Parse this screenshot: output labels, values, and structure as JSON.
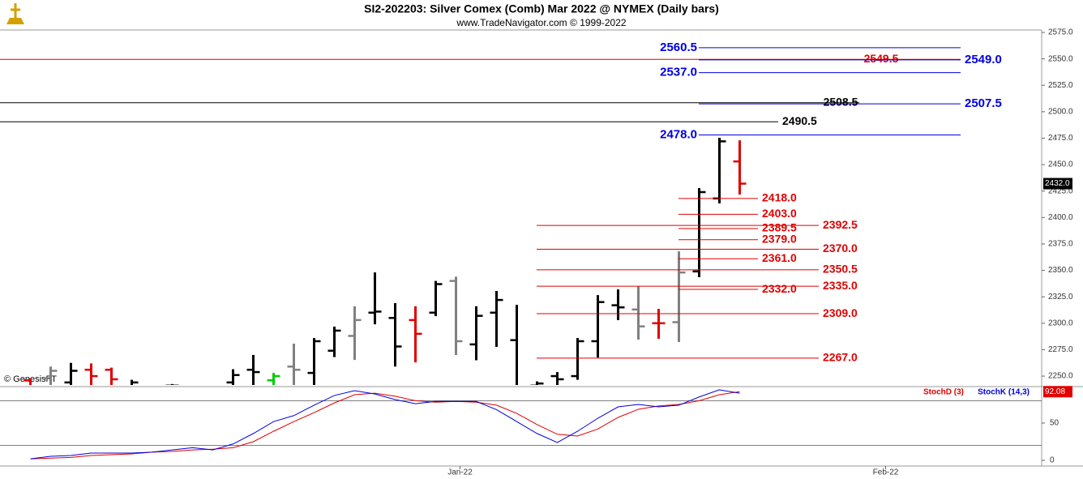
{
  "chart_data": [
    {
      "type": "ohlc",
      "title": "SI2-202203:  Silver Comex (Comb) Mar 2022 @ NYMEX  (Daily bars)",
      "subtitle": "www.TradeNavigator.com © 1999-2022",
      "watermark": "© GenesisFT",
      "x": [
        0,
        1,
        2,
        3,
        4,
        5,
        6,
        7,
        8,
        9,
        10,
        11,
        12,
        13,
        14,
        15,
        16,
        17,
        18,
        19,
        20,
        21,
        22,
        23,
        24,
        25,
        26,
        27,
        28,
        29,
        30,
        31,
        32,
        33,
        34,
        35
      ],
      "open": [
        2246,
        2248,
        2244,
        2256,
        2256,
        2240,
        null,
        2241,
        null,
        null,
        2244,
        2256,
        2246,
        2259,
        2253,
        2274,
        2288,
        2310,
        2305,
        2303,
        2310,
        2340,
        2280,
        2310,
        2284,
        2241,
        2250,
        2250,
        2283,
        2317,
        2313,
        2300,
        2301,
        2349,
        2418,
        2453
      ],
      "high": [
        2248,
        2259,
        2262.5,
        2262,
        2258,
        2246.5,
        null,
        2242.5,
        null,
        null,
        2256.5,
        2270,
        2253,
        2280.7,
        2286,
        2296.8,
        2316,
        2348,
        2319,
        2316,
        2340,
        2344,
        2316,
        2330.5,
        2317.4,
        2245,
        2253.8,
        2286,
        2326.6,
        2332,
        2335,
        2313.6,
        2368,
        2427.8,
        2475.4,
        2473
      ],
      "low": [
        2235,
        2236,
        2235,
        2238,
        2238,
        2235,
        null,
        2230,
        null,
        null,
        2236,
        2238,
        2240,
        2238,
        2240,
        2268,
        2265.3,
        2299,
        2259,
        2263,
        2306.7,
        2270,
        2265,
        2277.6,
        2230,
        2235,
        2235,
        2246.5,
        2267.6,
        2303,
        2284.5,
        2285.3,
        2282.2,
        2343.5,
        2413.3,
        2421.7
      ],
      "close": [
        2240,
        2255,
        2255,
        2250,
        2247,
        2244,
        null,
        2241,
        null,
        null,
        2251,
        2253.8,
        2250,
        2256,
        2283,
        2293,
        2303,
        2311,
        2278,
        2290,
        2337,
        2283,
        2307,
        2322,
        2240,
        2243,
        2247,
        2283,
        2320,
        2315,
        2297,
        2300,
        2348,
        2424,
        2472,
        2432
      ],
      "colors": [
        "#e00000",
        "#808080",
        "#000000",
        "#e00000",
        "#e00000",
        "#000000",
        null,
        "#000000",
        null,
        null,
        "#000000",
        "#000000",
        "#00cc00",
        "#808080",
        "#000000",
        "#000000",
        "#808080",
        "#000000",
        "#000000",
        "#e00000",
        "#000000",
        "#808080",
        "#000000",
        "#000000",
        "#000000",
        "#000000",
        "#000000",
        "#000000",
        "#000000",
        "#000000",
        "#808080",
        "#e00000",
        "#808080",
        "#000000",
        "#000000",
        "#e00000"
      ],
      "xlim": [
        -1.5,
        49.9
      ],
      "ylim": [
        2241.6,
        2577.3
      ],
      "yticks": [
        {
          "value": 2250,
          "label": "2250.0"
        },
        {
          "value": 2275,
          "label": "2275.0"
        },
        {
          "value": 2300,
          "label": "2300.0"
        },
        {
          "value": 2325,
          "label": "2325.0"
        },
        {
          "value": 2350,
          "label": "2350.0"
        },
        {
          "value": 2375,
          "label": "2375.0"
        },
        {
          "value": 2400,
          "label": "2400.0"
        },
        {
          "value": 2425,
          "label": "2425.0"
        },
        {
          "value": 2450,
          "label": "2450.0"
        },
        {
          "value": 2475,
          "label": "2475.0"
        },
        {
          "value": 2500,
          "label": "2500.0"
        },
        {
          "value": 2525,
          "label": "2525.0"
        },
        {
          "value": 2550,
          "label": "2550.0"
        },
        {
          "value": 2575,
          "label": "2575.0"
        }
      ],
      "last_price": {
        "value": 2432.0,
        "label": "2432.0"
      },
      "levels": [
        {
          "value": 2560.5,
          "label": "2560.5",
          "color": "#0000e0"
        },
        {
          "value": 2549.5,
          "label": "2549.5",
          "color": "#e00000"
        },
        {
          "value": 2549.0,
          "label": "2549.0",
          "color": "#0000e0"
        },
        {
          "value": 2537.0,
          "label": "2537.0",
          "color": "#0000e0"
        },
        {
          "value": 2508.5,
          "label": "2508.5",
          "color": "#000000"
        },
        {
          "value": 2507.5,
          "label": "2507.5",
          "color": "#0000e0"
        },
        {
          "value": 2490.5,
          "label": "2490.5",
          "color": "#000000"
        },
        {
          "value": 2478.0,
          "label": "2478.0",
          "color": "#0000e0"
        },
        {
          "value": 2418.0,
          "label": "2418.0",
          "color": "#e00000"
        },
        {
          "value": 2403.0,
          "label": "2403.0",
          "color": "#e00000"
        },
        {
          "value": 2389.5,
          "label": "2389.5",
          "color": "#e00000"
        },
        {
          "value": 2379.0,
          "label": "2379.0",
          "color": "#e00000"
        },
        {
          "value": 2361.0,
          "label": "2361.0",
          "color": "#e00000"
        },
        {
          "value": 2332.0,
          "label": "2332.0",
          "color": "#e00000"
        },
        {
          "value": 2392.5,
          "label": "2392.5",
          "color": "#e00000"
        },
        {
          "value": 2370.0,
          "label": "2370.0",
          "color": "#e00000"
        },
        {
          "value": 2350.5,
          "label": "2350.5",
          "color": "#e00000"
        },
        {
          "value": 2335.0,
          "label": "2335.0",
          "color": "#e00000"
        },
        {
          "value": 2309.0,
          "label": "2309.0",
          "color": "#e00000"
        },
        {
          "value": 2267.0,
          "label": "2267.0",
          "color": "#e00000"
        }
      ]
    },
    {
      "type": "line",
      "x": [
        0,
        1,
        2,
        3,
        4,
        5,
        6,
        7,
        8,
        9,
        10,
        11,
        12,
        13,
        14,
        15,
        16,
        17,
        18,
        19,
        20,
        21,
        22,
        23,
        24,
        25,
        26,
        27,
        28,
        29,
        30,
        31,
        32,
        33,
        34,
        35
      ],
      "series": [
        {
          "name": "StochD (3)",
          "color": "#e00000",
          "values": [
            2,
            3,
            4,
            6.5,
            7.6,
            8.7,
            11,
            12,
            14,
            15,
            17,
            25,
            39,
            52,
            64,
            77,
            88,
            90,
            86,
            80,
            78,
            79,
            78,
            74,
            63,
            48,
            35,
            32.6,
            42,
            57.6,
            68.5,
            73,
            75,
            80,
            88,
            92.08
          ]
        },
        {
          "name": "StochK (14,3)",
          "color": "#0000e0",
          "values": [
            2,
            5.4,
            6.5,
            9.8,
            9.8,
            9.8,
            11,
            14,
            17,
            14,
            22,
            36,
            52,
            60,
            74,
            87,
            93.5,
            89,
            81.5,
            76,
            79,
            79,
            79,
            68,
            52,
            36,
            24,
            39,
            56.5,
            71.7,
            75,
            71.7,
            74,
            85,
            94.6,
            90
          ]
        }
      ],
      "xlim": [
        -1.5,
        49.9
      ],
      "xticks": [
        {
          "value": 21.2,
          "label": "Jan-22"
        },
        {
          "value": 42.2,
          "label": "Feb-22"
        }
      ],
      "ylim": [
        -7.6,
        97.8
      ],
      "yticks": [
        0,
        50
      ],
      "grid_levels": [
        20,
        80
      ]
    }
  ]
}
